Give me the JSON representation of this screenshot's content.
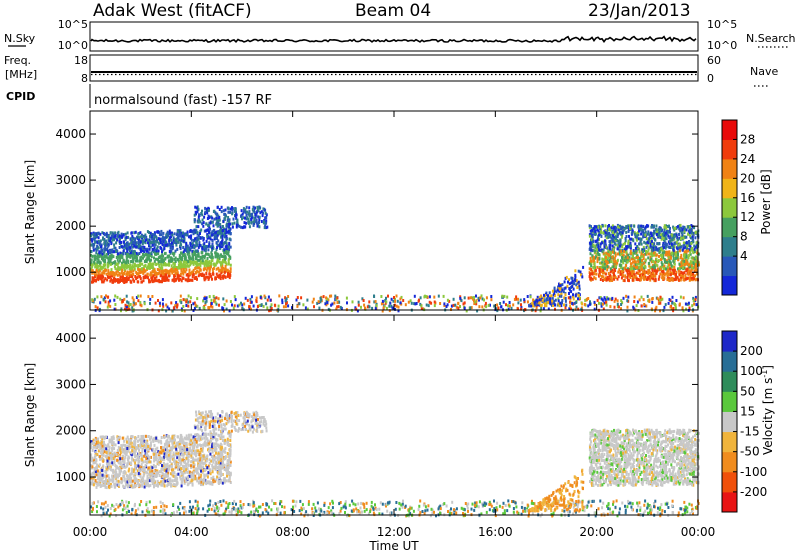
{
  "header": {
    "station": "Adak West (fitACF)",
    "beam": "Beam 04",
    "date": "23/Jan/2013"
  },
  "top_panels": {
    "nsky": {
      "label": "N.Sky",
      "right_label": "N.Search",
      "left_ticks": [
        "10^5",
        "10^0"
      ],
      "right_ticks": [
        "10^5",
        "10^0"
      ]
    },
    "freq": {
      "label_line1": "Freq.",
      "label_line2": "[MHz]",
      "right_label": "Nave",
      "left_ticks": [
        "18",
        "8"
      ],
      "right_ticks": [
        "60",
        "0"
      ]
    },
    "cpid": {
      "label": "CPID",
      "text": "normalsound (fast) -157 RF"
    }
  },
  "chart_data": [
    {
      "type": "heatmap",
      "title": "",
      "ylabel": "Slant Range [km]",
      "xlabel": "",
      "xlim": [
        "00:00",
        "00:00"
      ],
      "ylim": [
        180,
        4500
      ],
      "y_ticks": [
        "1000",
        "2000",
        "3000",
        "4000"
      ],
      "x_ticks": [
        "00:00",
        "04:00",
        "08:00",
        "12:00",
        "16:00",
        "20:00",
        "00:00"
      ],
      "colorbar": {
        "label": "Power [dB]",
        "ticks": [
          "4",
          "8",
          "12",
          "16",
          "20",
          "24",
          "28"
        ],
        "colors": [
          "#1428d8",
          "#2858b8",
          "#2e7e8c",
          "#46a060",
          "#8cc83c",
          "#f0b418",
          "#f08214",
          "#f03c0c",
          "#e80a0a"
        ]
      }
    },
    {
      "type": "heatmap",
      "title": "",
      "ylabel": "Slant Range [km]",
      "xlabel": "Time UT",
      "xlim": [
        "00:00",
        "00:00"
      ],
      "ylim": [
        180,
        4500
      ],
      "y_ticks": [
        "1000",
        "2000",
        "3000",
        "4000"
      ],
      "x_ticks": [
        "00:00",
        "04:00",
        "08:00",
        "12:00",
        "16:00",
        "20:00",
        "00:00"
      ],
      "colorbar": {
        "label_main": "Velocity [m s",
        "label_exp": "-1",
        "label_end": "]",
        "ticks": [
          "200",
          "100",
          "50",
          "15",
          "-15",
          "-50",
          "-100",
          "-200"
        ],
        "colors": [
          "#1e28c8",
          "#286e96",
          "#2e8c5a",
          "#5ac83c",
          "#c8c8c8",
          "#f0b43c",
          "#f08c1e",
          "#f0500a",
          "#e81414"
        ]
      }
    }
  ]
}
